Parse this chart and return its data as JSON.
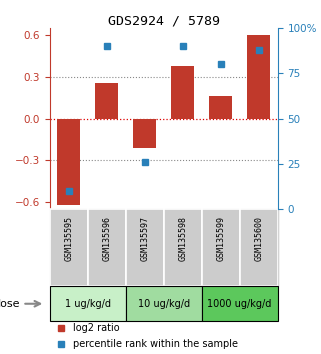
{
  "title": "GDS2924 / 5789",
  "samples": [
    "GSM135595",
    "GSM135596",
    "GSM135597",
    "GSM135598",
    "GSM135599",
    "GSM135600"
  ],
  "log2_ratio": [
    -0.62,
    0.255,
    -0.21,
    0.375,
    0.16,
    0.605
  ],
  "percentile_rank": [
    10,
    90,
    26,
    90,
    80,
    88
  ],
  "bar_color": "#c0392b",
  "square_color": "#2980b9",
  "ylim_left": [
    -0.65,
    0.65
  ],
  "ylim_right": [
    0,
    100
  ],
  "yticks_left": [
    -0.6,
    -0.3,
    0.0,
    0.3,
    0.6
  ],
  "yticks_right": [
    0,
    25,
    50,
    75,
    100
  ],
  "ytick_labels_right": [
    "0",
    "25",
    "50",
    "75",
    "100%"
  ],
  "hlines": [
    0.3,
    0.0,
    -0.3
  ],
  "dose_groups": [
    {
      "label": "1 ug/kg/d",
      "indices": [
        0,
        1
      ],
      "color": "#c8f0c8"
    },
    {
      "label": "10 ug/kg/d",
      "indices": [
        2,
        3
      ],
      "color": "#a0dca0"
    },
    {
      "label": "1000 ug/kg/d",
      "indices": [
        4,
        5
      ],
      "color": "#5cc85c"
    }
  ],
  "dose_label": "dose",
  "legend_red": "log2 ratio",
  "legend_blue": "percentile rank within the sample",
  "bar_width": 0.6,
  "sample_box_color": "#cccccc",
  "zero_line_color": "#dd0000",
  "dotted_line_color": "#888888"
}
